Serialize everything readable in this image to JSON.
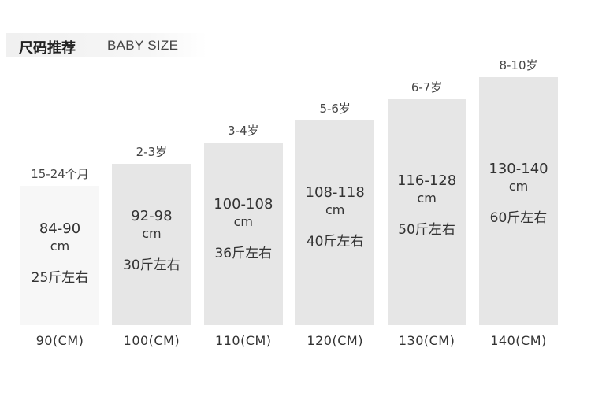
{
  "header": {
    "title": "尺码推荐",
    "subtitle": "BABY SIZE"
  },
  "colors": {
    "bar_light": "#f7f7f7",
    "bar_dark": "#e6e6e6",
    "text": "#333333"
  },
  "chart_data": {
    "type": "bar",
    "categories": [
      "90(CM)",
      "100(CM)",
      "110(CM)",
      "120(CM)",
      "130(CM)",
      "140(CM)"
    ],
    "ages": [
      "15-24个月",
      "2-3岁",
      "3-4岁",
      "5-6岁",
      "6-7岁",
      "8-10岁"
    ],
    "height_ranges": [
      "84-90",
      "92-98",
      "100-108",
      "108-118",
      "116-128",
      "130-140"
    ],
    "height_unit": "cm",
    "weights": [
      "25斤左右",
      "30斤左右",
      "36斤左右",
      "40斤左右",
      "50斤左右",
      "60斤左右"
    ],
    "values": [
      90,
      100,
      110,
      120,
      130,
      140
    ],
    "title": "",
    "xlabel": "",
    "ylabel": ""
  }
}
